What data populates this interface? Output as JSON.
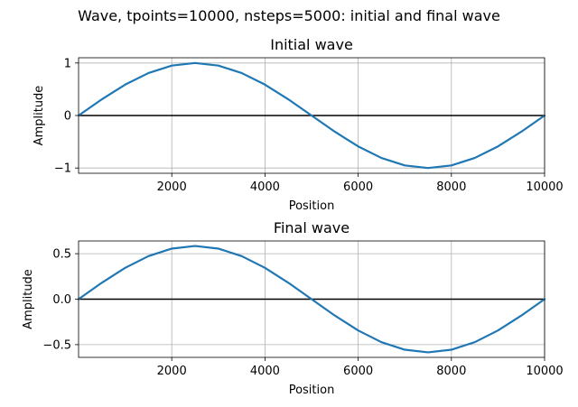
{
  "suptitle": "Wave, tpoints=10000, nsteps=5000: initial and final wave",
  "colors": {
    "series": "#1f77b4",
    "zero_line": "#000000",
    "grid": "#b0b0b0"
  },
  "chart_data": [
    {
      "type": "line",
      "title": "Initial wave",
      "xlabel": "Position",
      "ylabel": "Amplitude",
      "xlim": [
        0,
        10000
      ],
      "ylim": [
        -1.1,
        1.1
      ],
      "xticks": [
        2000,
        4000,
        6000,
        8000,
        10000
      ],
      "xticklabels": [
        "2000",
        "4000",
        "6000",
        "8000",
        "10000"
      ],
      "yticks": [
        -1,
        0,
        1
      ],
      "yticklabels": [
        "−1",
        "0",
        "1"
      ],
      "grid": true,
      "zero_line": true,
      "series": [
        {
          "x": [
            0,
            500,
            1000,
            1500,
            2000,
            2500,
            3000,
            3500,
            4000,
            4500,
            5000,
            5500,
            6000,
            6500,
            7000,
            7500,
            8000,
            8500,
            9000,
            9500,
            10000
          ],
          "y": [
            0,
            0.309,
            0.588,
            0.809,
            0.951,
            1.0,
            0.951,
            0.809,
            0.588,
            0.309,
            0,
            -0.309,
            -0.588,
            -0.809,
            -0.951,
            -1.0,
            -0.951,
            -0.809,
            -0.588,
            -0.309,
            0
          ]
        }
      ]
    },
    {
      "type": "line",
      "title": "Final wave",
      "xlabel": "Position",
      "ylabel": "Amplitude",
      "xlim": [
        0,
        10000
      ],
      "ylim": [
        -0.64,
        0.64
      ],
      "xticks": [
        2000,
        4000,
        6000,
        8000,
        10000
      ],
      "xticklabels": [
        "2000",
        "4000",
        "6000",
        "8000",
        "10000"
      ],
      "yticks": [
        -0.5,
        0.0,
        0.5
      ],
      "yticklabels": [
        "−0.5",
        "0.0",
        "0.5"
      ],
      "grid": true,
      "zero_line": true,
      "series": [
        {
          "x": [
            0,
            500,
            1000,
            1500,
            2000,
            2500,
            3000,
            3500,
            4000,
            4500,
            5000,
            5500,
            6000,
            6500,
            7000,
            7500,
            8000,
            8500,
            9000,
            9500,
            10000
          ],
          "y": [
            0,
            0.181,
            0.344,
            0.473,
            0.556,
            0.585,
            0.556,
            0.473,
            0.344,
            0.181,
            0,
            -0.181,
            -0.344,
            -0.473,
            -0.556,
            -0.585,
            -0.556,
            -0.473,
            -0.344,
            -0.181,
            0
          ]
        }
      ]
    }
  ]
}
